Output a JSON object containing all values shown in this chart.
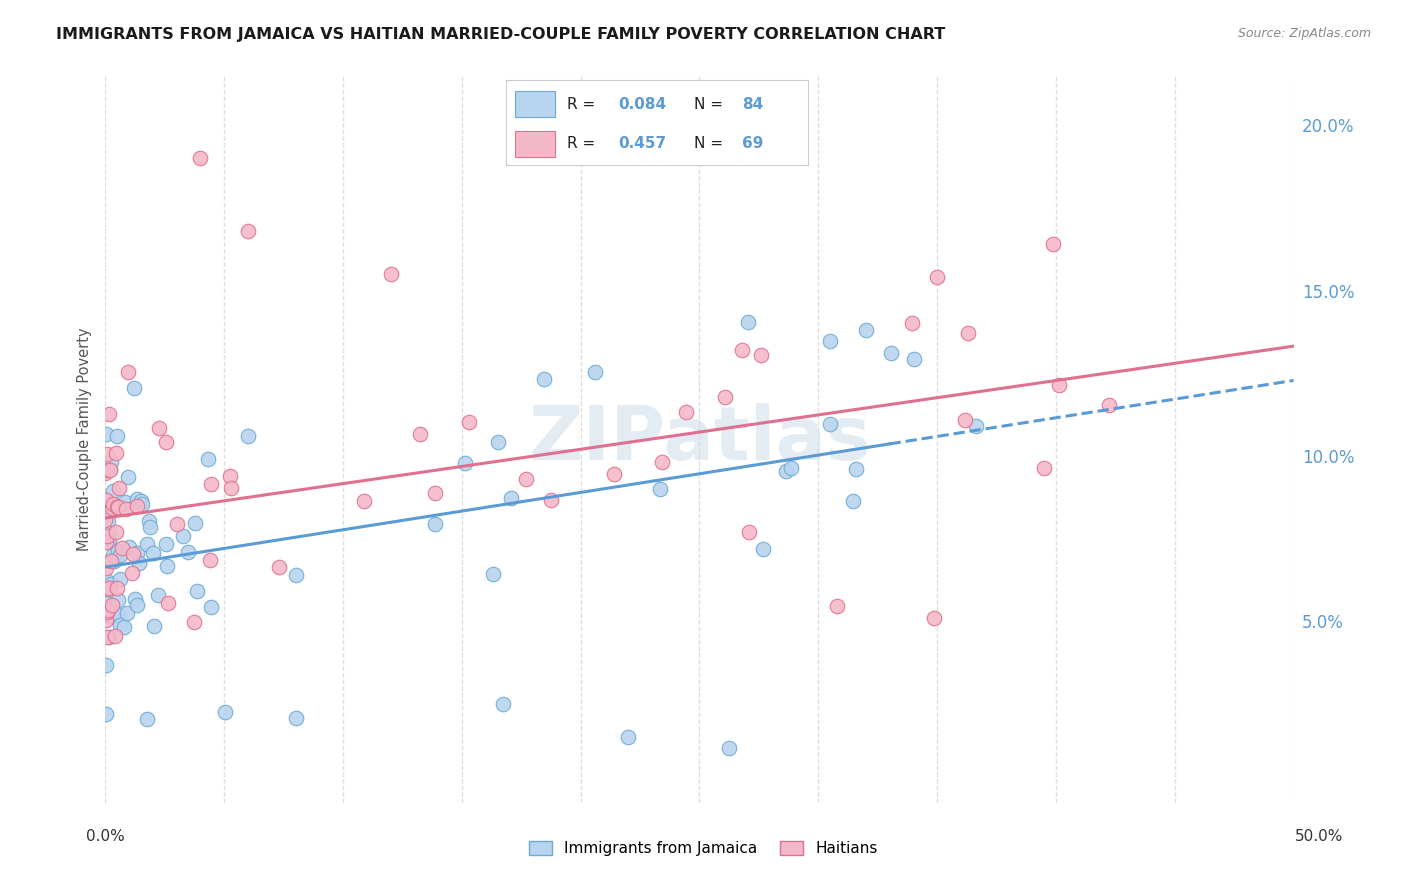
{
  "title": "IMMIGRANTS FROM JAMAICA VS HAITIAN MARRIED-COUPLE FAMILY POVERTY CORRELATION CHART",
  "source": "Source: ZipAtlas.com",
  "ylabel": "Married-Couple Family Poverty",
  "xlim": [
    0.0,
    0.5
  ],
  "ylim": [
    -0.005,
    0.215
  ],
  "yticks": [
    0.05,
    0.1,
    0.15,
    0.2
  ],
  "ytick_labels": [
    "5.0%",
    "10.0%",
    "15.0%",
    "20.0%"
  ],
  "color_jamaica_fill": "#b8d4ee",
  "color_jamaica_edge": "#6aaad4",
  "color_haitian_fill": "#f5b8c8",
  "color_haitian_edge": "#e07090",
  "color_trendline_jamaica": "#5b9bd5",
  "color_trendline_haitian": "#e07090",
  "color_ytick": "#5b9bd5",
  "watermark": "ZIPatlas",
  "background_color": "#ffffff",
  "grid_color": "#dddddd"
}
